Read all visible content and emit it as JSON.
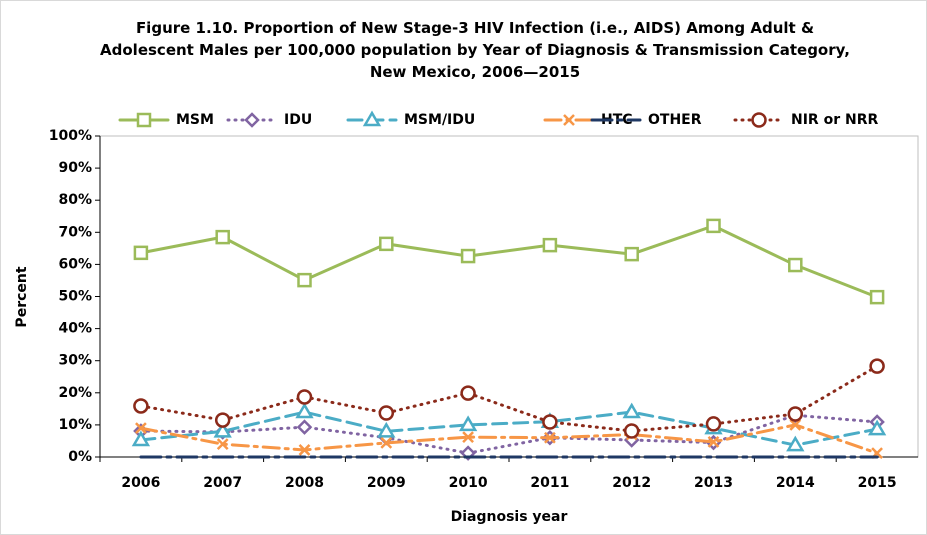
{
  "chart_data": {
    "type": "line",
    "title": "Figure 1.10. Proportion of New Stage-3 HIV Infection (i.e., AIDS) Among Adult & Adolescent Males per 100,000 population by Year of Diagnosis & Transmission Category, New Mexico, 2006—2015",
    "x_label": "Diagnosis year",
    "y_label": "Percent",
    "categories": [
      "2006",
      "2007",
      "2008",
      "2009",
      "2010",
      "2011",
      "2012",
      "2013",
      "2014",
      "2015"
    ],
    "ylim": [
      0,
      100
    ],
    "yticks": [
      {
        "value": 0,
        "label": "0%"
      },
      {
        "value": 10,
        "label": "10%"
      },
      {
        "value": 20,
        "label": "20%"
      },
      {
        "value": 30,
        "label": "30%"
      },
      {
        "value": 40,
        "label": "40%"
      },
      {
        "value": 50,
        "label": "50%"
      },
      {
        "value": 60,
        "label": "60%"
      },
      {
        "value": 70,
        "label": "70%"
      },
      {
        "value": 80,
        "label": "80%"
      },
      {
        "value": 90,
        "label": "90%"
      },
      {
        "value": 100,
        "label": "100%"
      }
    ],
    "legend": "top",
    "series": [
      {
        "name": "MSM",
        "color": "#9bbb59",
        "marker": "square",
        "dash": "solid",
        "values": [
          63.6,
          68.5,
          55.1,
          66.4,
          62.6,
          66.0,
          63.2,
          72.0,
          59.8,
          49.8
        ]
      },
      {
        "name": "IDU",
        "color": "#8064a2",
        "marker": "diamond",
        "dash": "dot",
        "values": [
          8.1,
          7.8,
          9.3,
          6.0,
          1.2,
          6.0,
          5.3,
          4.5,
          13.0,
          10.9
        ]
      },
      {
        "name": "MSM/IDU",
        "color": "#4bacc6",
        "marker": "triangle",
        "dash": "dash",
        "values": [
          5.3,
          8.0,
          14.0,
          8.0,
          10.0,
          11.0,
          14.0,
          9.0,
          3.7,
          8.7
        ]
      },
      {
        "name": "HTC",
        "color": "#f79646",
        "marker": "x",
        "dash": "dashdot",
        "values": [
          9.0,
          4.0,
          2.2,
          4.4,
          6.2,
          6.0,
          7.0,
          4.7,
          10.0,
          1.2
        ]
      },
      {
        "name": "OTHER",
        "color": "#1f3864",
        "marker": "none",
        "dash": "longdashdot",
        "values": [
          0,
          0,
          0,
          0,
          0,
          0,
          0,
          0,
          0,
          0
        ]
      },
      {
        "name": "NIR or NRR",
        "color": "#8b2a1a",
        "marker": "circle",
        "dash": "dot",
        "values": [
          15.9,
          11.5,
          18.7,
          13.7,
          19.9,
          10.9,
          8.1,
          10.3,
          13.4,
          28.3
        ]
      }
    ]
  }
}
